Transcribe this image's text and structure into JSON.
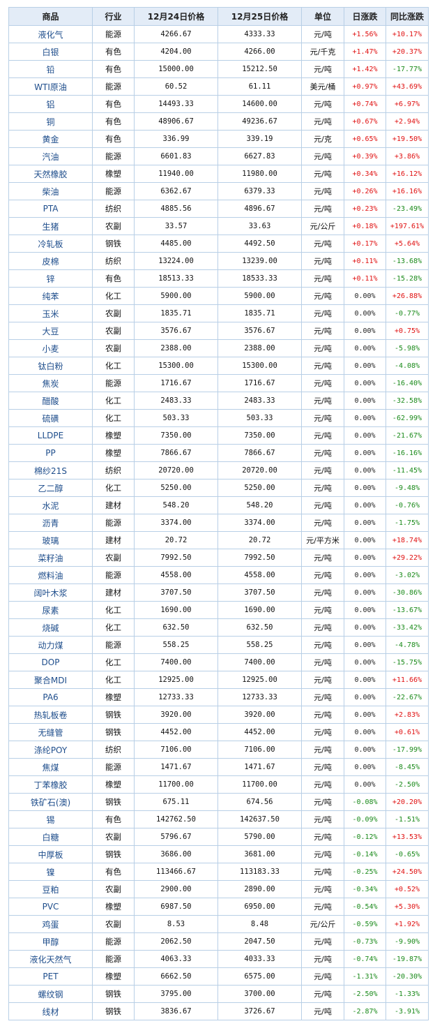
{
  "table": {
    "headers": [
      "商品",
      "行业",
      "12月24日价格",
      "12月25日价格",
      "单位",
      "日涨跌",
      "同比涨跌"
    ],
    "colors": {
      "up": "#e01010",
      "down": "#1a8a1a",
      "flat": "#222222",
      "name": "#1f4e8c",
      "header_bg": "#e3ecf7",
      "border": "#b8cfe6"
    },
    "rows": [
      {
        "name": "液化气",
        "industry": "能源",
        "p1": "4266.67",
        "p2": "4333.33",
        "unit": "元/吨",
        "day": "+1.56%",
        "yoy": "+10.17%"
      },
      {
        "name": "白银",
        "industry": "有色",
        "p1": "4204.00",
        "p2": "4266.00",
        "unit": "元/千克",
        "day": "+1.47%",
        "yoy": "+20.37%"
      },
      {
        "name": "铅",
        "industry": "有色",
        "p1": "15000.00",
        "p2": "15212.50",
        "unit": "元/吨",
        "day": "+1.42%",
        "yoy": "-17.77%"
      },
      {
        "name": "WTI原油",
        "industry": "能源",
        "p1": "60.52",
        "p2": "61.11",
        "unit": "美元/桶",
        "day": "+0.97%",
        "yoy": "+43.69%"
      },
      {
        "name": "铝",
        "industry": "有色",
        "p1": "14493.33",
        "p2": "14600.00",
        "unit": "元/吨",
        "day": "+0.74%",
        "yoy": "+6.97%"
      },
      {
        "name": "铜",
        "industry": "有色",
        "p1": "48906.67",
        "p2": "49236.67",
        "unit": "元/吨",
        "day": "+0.67%",
        "yoy": "+2.94%"
      },
      {
        "name": "黄金",
        "industry": "有色",
        "p1": "336.99",
        "p2": "339.19",
        "unit": "元/克",
        "day": "+0.65%",
        "yoy": "+19.50%"
      },
      {
        "name": "汽油",
        "industry": "能源",
        "p1": "6601.83",
        "p2": "6627.83",
        "unit": "元/吨",
        "day": "+0.39%",
        "yoy": "+3.86%"
      },
      {
        "name": "天然橡胶",
        "industry": "橡塑",
        "p1": "11940.00",
        "p2": "11980.00",
        "unit": "元/吨",
        "day": "+0.34%",
        "yoy": "+16.12%"
      },
      {
        "name": "柴油",
        "industry": "能源",
        "p1": "6362.67",
        "p2": "6379.33",
        "unit": "元/吨",
        "day": "+0.26%",
        "yoy": "+16.16%"
      },
      {
        "name": "PTA",
        "industry": "纺织",
        "p1": "4885.56",
        "p2": "4896.67",
        "unit": "元/吨",
        "day": "+0.23%",
        "yoy": "-23.49%"
      },
      {
        "name": "生猪",
        "industry": "农副",
        "p1": "33.57",
        "p2": "33.63",
        "unit": "元/公斤",
        "day": "+0.18%",
        "yoy": "+197.61%"
      },
      {
        "name": "冷轧板",
        "industry": "钢铁",
        "p1": "4485.00",
        "p2": "4492.50",
        "unit": "元/吨",
        "day": "+0.17%",
        "yoy": "+5.64%"
      },
      {
        "name": "皮棉",
        "industry": "纺织",
        "p1": "13224.00",
        "p2": "13239.00",
        "unit": "元/吨",
        "day": "+0.11%",
        "yoy": "-13.68%"
      },
      {
        "name": "锌",
        "industry": "有色",
        "p1": "18513.33",
        "p2": "18533.33",
        "unit": "元/吨",
        "day": "+0.11%",
        "yoy": "-15.28%"
      },
      {
        "name": "纯苯",
        "industry": "化工",
        "p1": "5900.00",
        "p2": "5900.00",
        "unit": "元/吨",
        "day": "0.00%",
        "yoy": "+26.88%"
      },
      {
        "name": "玉米",
        "industry": "农副",
        "p1": "1835.71",
        "p2": "1835.71",
        "unit": "元/吨",
        "day": "0.00%",
        "yoy": "-0.77%"
      },
      {
        "name": "大豆",
        "industry": "农副",
        "p1": "3576.67",
        "p2": "3576.67",
        "unit": "元/吨",
        "day": "0.00%",
        "yoy": "+0.75%"
      },
      {
        "name": "小麦",
        "industry": "农副",
        "p1": "2388.00",
        "p2": "2388.00",
        "unit": "元/吨",
        "day": "0.00%",
        "yoy": "-5.98%"
      },
      {
        "name": "钛白粉",
        "industry": "化工",
        "p1": "15300.00",
        "p2": "15300.00",
        "unit": "元/吨",
        "day": "0.00%",
        "yoy": "-4.08%"
      },
      {
        "name": "焦炭",
        "industry": "能源",
        "p1": "1716.67",
        "p2": "1716.67",
        "unit": "元/吨",
        "day": "0.00%",
        "yoy": "-16.40%"
      },
      {
        "name": "醋酸",
        "industry": "化工",
        "p1": "2483.33",
        "p2": "2483.33",
        "unit": "元/吨",
        "day": "0.00%",
        "yoy": "-32.58%"
      },
      {
        "name": "硫磺",
        "industry": "化工",
        "p1": "503.33",
        "p2": "503.33",
        "unit": "元/吨",
        "day": "0.00%",
        "yoy": "-62.99%"
      },
      {
        "name": "LLDPE",
        "industry": "橡塑",
        "p1": "7350.00",
        "p2": "7350.00",
        "unit": "元/吨",
        "day": "0.00%",
        "yoy": "-21.67%"
      },
      {
        "name": "PP",
        "industry": "橡塑",
        "p1": "7866.67",
        "p2": "7866.67",
        "unit": "元/吨",
        "day": "0.00%",
        "yoy": "-16.16%"
      },
      {
        "name": "棉纱21S",
        "industry": "纺织",
        "p1": "20720.00",
        "p2": "20720.00",
        "unit": "元/吨",
        "day": "0.00%",
        "yoy": "-11.45%"
      },
      {
        "name": "乙二醇",
        "industry": "化工",
        "p1": "5250.00",
        "p2": "5250.00",
        "unit": "元/吨",
        "day": "0.00%",
        "yoy": "-9.48%"
      },
      {
        "name": "水泥",
        "industry": "建材",
        "p1": "548.20",
        "p2": "548.20",
        "unit": "元/吨",
        "day": "0.00%",
        "yoy": "-0.76%"
      },
      {
        "name": "沥青",
        "industry": "能源",
        "p1": "3374.00",
        "p2": "3374.00",
        "unit": "元/吨",
        "day": "0.00%",
        "yoy": "-1.75%"
      },
      {
        "name": "玻璃",
        "industry": "建材",
        "p1": "20.72",
        "p2": "20.72",
        "unit": "元/平方米",
        "day": "0.00%",
        "yoy": "+18.74%"
      },
      {
        "name": "菜籽油",
        "industry": "农副",
        "p1": "7992.50",
        "p2": "7992.50",
        "unit": "元/吨",
        "day": "0.00%",
        "yoy": "+29.22%"
      },
      {
        "name": "燃料油",
        "industry": "能源",
        "p1": "4558.00",
        "p2": "4558.00",
        "unit": "元/吨",
        "day": "0.00%",
        "yoy": "-3.02%"
      },
      {
        "name": "阔叶木浆",
        "industry": "建材",
        "p1": "3707.50",
        "p2": "3707.50",
        "unit": "元/吨",
        "day": "0.00%",
        "yoy": "-30.86%"
      },
      {
        "name": "尿素",
        "industry": "化工",
        "p1": "1690.00",
        "p2": "1690.00",
        "unit": "元/吨",
        "day": "0.00%",
        "yoy": "-13.67%"
      },
      {
        "name": "烧碱",
        "industry": "化工",
        "p1": "632.50",
        "p2": "632.50",
        "unit": "元/吨",
        "day": "0.00%",
        "yoy": "-33.42%"
      },
      {
        "name": "动力煤",
        "industry": "能源",
        "p1": "558.25",
        "p2": "558.25",
        "unit": "元/吨",
        "day": "0.00%",
        "yoy": "-4.78%"
      },
      {
        "name": "DOP",
        "industry": "化工",
        "p1": "7400.00",
        "p2": "7400.00",
        "unit": "元/吨",
        "day": "0.00%",
        "yoy": "-15.75%"
      },
      {
        "name": "聚合MDI",
        "industry": "化工",
        "p1": "12925.00",
        "p2": "12925.00",
        "unit": "元/吨",
        "day": "0.00%",
        "yoy": "+11.66%"
      },
      {
        "name": "PA6",
        "industry": "橡塑",
        "p1": "12733.33",
        "p2": "12733.33",
        "unit": "元/吨",
        "day": "0.00%",
        "yoy": "-22.67%"
      },
      {
        "name": "热轧板卷",
        "industry": "钢铁",
        "p1": "3920.00",
        "p2": "3920.00",
        "unit": "元/吨",
        "day": "0.00%",
        "yoy": "+2.83%"
      },
      {
        "name": "无缝管",
        "industry": "钢铁",
        "p1": "4452.00",
        "p2": "4452.00",
        "unit": "元/吨",
        "day": "0.00%",
        "yoy": "+0.61%"
      },
      {
        "name": "涤纶POY",
        "industry": "纺织",
        "p1": "7106.00",
        "p2": "7106.00",
        "unit": "元/吨",
        "day": "0.00%",
        "yoy": "-17.99%"
      },
      {
        "name": "焦煤",
        "industry": "能源",
        "p1": "1471.67",
        "p2": "1471.67",
        "unit": "元/吨",
        "day": "0.00%",
        "yoy": "-8.45%"
      },
      {
        "name": "丁苯橡胶",
        "industry": "橡塑",
        "p1": "11700.00",
        "p2": "11700.00",
        "unit": "元/吨",
        "day": "0.00%",
        "yoy": "-2.50%"
      },
      {
        "name": "铁矿石(澳)",
        "industry": "钢铁",
        "p1": "675.11",
        "p2": "674.56",
        "unit": "元/吨",
        "day": "-0.08%",
        "yoy": "+20.20%"
      },
      {
        "name": "锡",
        "industry": "有色",
        "p1": "142762.50",
        "p2": "142637.50",
        "unit": "元/吨",
        "day": "-0.09%",
        "yoy": "-1.51%"
      },
      {
        "name": "白糖",
        "industry": "农副",
        "p1": "5796.67",
        "p2": "5790.00",
        "unit": "元/吨",
        "day": "-0.12%",
        "yoy": "+13.53%"
      },
      {
        "name": "中厚板",
        "industry": "钢铁",
        "p1": "3686.00",
        "p2": "3681.00",
        "unit": "元/吨",
        "day": "-0.14%",
        "yoy": "-0.65%"
      },
      {
        "name": "镍",
        "industry": "有色",
        "p1": "113466.67",
        "p2": "113183.33",
        "unit": "元/吨",
        "day": "-0.25%",
        "yoy": "+24.50%"
      },
      {
        "name": "豆粕",
        "industry": "农副",
        "p1": "2900.00",
        "p2": "2890.00",
        "unit": "元/吨",
        "day": "-0.34%",
        "yoy": "+0.52%"
      },
      {
        "name": "PVC",
        "industry": "橡塑",
        "p1": "6987.50",
        "p2": "6950.00",
        "unit": "元/吨",
        "day": "-0.54%",
        "yoy": "+5.30%"
      },
      {
        "name": "鸡蛋",
        "industry": "农副",
        "p1": "8.53",
        "p2": "8.48",
        "unit": "元/公斤",
        "day": "-0.59%",
        "yoy": "+1.92%"
      },
      {
        "name": "甲醇",
        "industry": "能源",
        "p1": "2062.50",
        "p2": "2047.50",
        "unit": "元/吨",
        "day": "-0.73%",
        "yoy": "-9.90%"
      },
      {
        "name": "液化天然气",
        "industry": "能源",
        "p1": "4063.33",
        "p2": "4033.33",
        "unit": "元/吨",
        "day": "-0.74%",
        "yoy": "-19.87%"
      },
      {
        "name": "PET",
        "industry": "橡塑",
        "p1": "6662.50",
        "p2": "6575.00",
        "unit": "元/吨",
        "day": "-1.31%",
        "yoy": "-20.30%"
      },
      {
        "name": "螺纹钢",
        "industry": "钢铁",
        "p1": "3795.00",
        "p2": "3700.00",
        "unit": "元/吨",
        "day": "-2.50%",
        "yoy": "-1.33%"
      },
      {
        "name": "线材",
        "industry": "钢铁",
        "p1": "3836.67",
        "p2": "3726.67",
        "unit": "元/吨",
        "day": "-2.87%",
        "yoy": "-3.91%"
      }
    ]
  }
}
